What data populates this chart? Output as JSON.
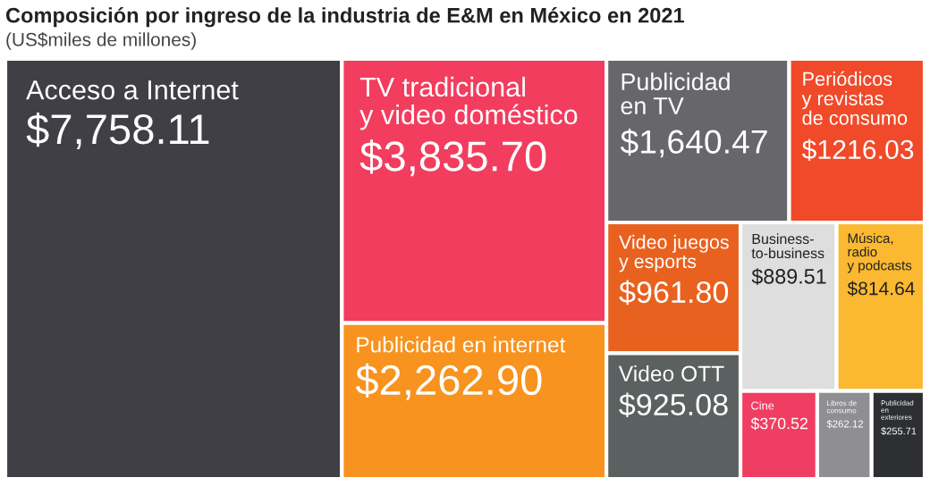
{
  "chart_data": {
    "type": "other",
    "title": "Composición por ingreso de la industria de E&M en México en 2021",
    "subtitle": "(US$miles de millones)",
    "categories": [
      "Acceso a Internet",
      "TV tradicional\ny video doméstico",
      "Publicidad en internet",
      "Publicidad\nen TV",
      "Periódicos\ny revistas\nde consumo",
      "Video juegos\ny esports",
      "Business-\nto-business",
      "Música,\nradio\ny podcasts",
      "Video OTT",
      "Cine",
      "Libros de\nconsumo",
      "Publicidad\nen\nexteriores"
    ],
    "values": [
      7758.11,
      3835.7,
      2262.9,
      1640.47,
      1216.03,
      961.8,
      889.51,
      814.64,
      925.08,
      370.52,
      262.12,
      255.71
    ],
    "value_labels": [
      "$7,758.11",
      "$3,835.70",
      "$2,262.90",
      "$1,640.47",
      "$1216.03",
      "$961.80",
      "$889.51",
      "$814.64",
      "$925.08",
      "$370.52",
      "$262.12",
      "$255.71"
    ],
    "colors": [
      "#3f3f45",
      "#f23d5e",
      "#f7931e",
      "#66666b",
      "#f04a2a",
      "#e8611f",
      "#dedede",
      "#fbb931",
      "#5b6160",
      "#f03e63",
      "#8e8e93",
      "#2d2f33"
    ]
  }
}
